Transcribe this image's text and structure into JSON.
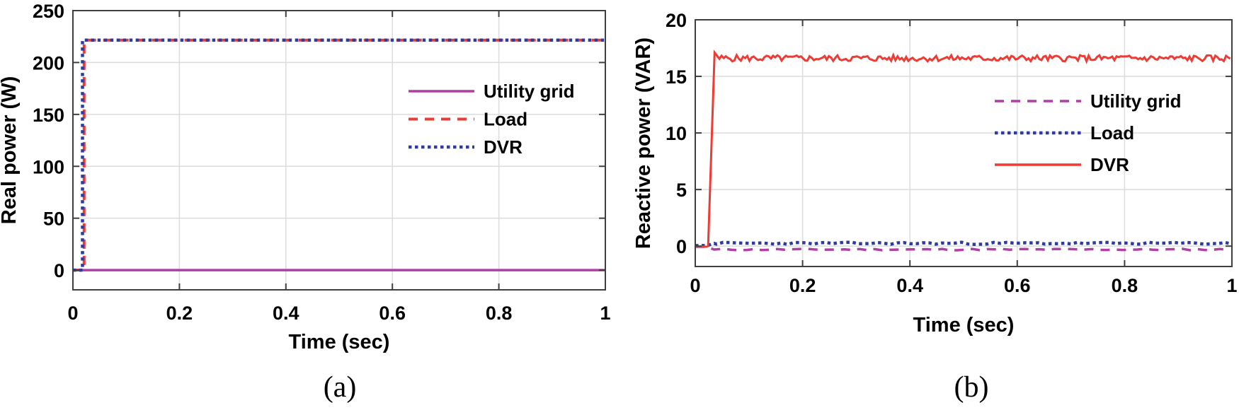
{
  "page": {
    "background_color": "#ffffff"
  },
  "chart_data": [
    {
      "type": "line",
      "caption": "(a)",
      "title": "",
      "xlabel": "Time (sec)",
      "ylabel": "Real power (W)",
      "xlim": [
        0,
        1
      ],
      "ylim": [
        -19,
        250
      ],
      "xticks": [
        0,
        0.2,
        0.4,
        0.6,
        0.8,
        1
      ],
      "xtick_labels": [
        "0",
        "0.2",
        "0.4",
        "0.6",
        "0.8",
        "1"
      ],
      "yticks": [
        0,
        50,
        100,
        150,
        200,
        250
      ],
      "ytick_labels": [
        "0",
        "50",
        "100",
        "150",
        "200",
        "250"
      ],
      "grid": true,
      "legend_position": "inside-center-right",
      "axis_color": "#3f3f3f",
      "grid_color": "#dcdcdc",
      "text_color": "#000000",
      "series": [
        {
          "name": "Utility grid",
          "color": "#b03ea6",
          "style": "solid",
          "width": 3.5,
          "points": [
            [
              0,
              0
            ],
            [
              1,
              0
            ]
          ]
        },
        {
          "name": "Load",
          "color": "#ee3b34",
          "style": "dashed",
          "width": 4,
          "points": [
            [
              0,
              0
            ],
            [
              0.021,
              0
            ],
            [
              0.021,
              221.5
            ],
            [
              1,
              221.5
            ]
          ]
        },
        {
          "name": "DVR",
          "color": "#2d3c9e",
          "style": "dotted",
          "width": 4.5,
          "points": [
            [
              0,
              0
            ],
            [
              0.018,
              0
            ],
            [
              0.018,
              221.5
            ],
            [
              1,
              221.5
            ]
          ]
        }
      ]
    },
    {
      "type": "line",
      "caption": "(b)",
      "title": "",
      "xlabel": "Time (sec)",
      "ylabel": "Reactive power (VAR)",
      "xlim": [
        0,
        1
      ],
      "ylim": [
        -1.8,
        20
      ],
      "xticks": [
        0,
        0.2,
        0.4,
        0.6,
        0.8,
        1
      ],
      "xtick_labels": [
        "0",
        "0.2",
        "0.4",
        "0.6",
        "0.8",
        "1"
      ],
      "yticks": [
        0,
        5,
        10,
        15,
        20
      ],
      "ytick_labels": [
        "0",
        "5",
        "10",
        "15",
        "20"
      ],
      "grid": true,
      "legend_position": "inside-center-right",
      "axis_color": "#3f3f3f",
      "grid_color": "#dcdcdc",
      "text_color": "#000000",
      "series": [
        {
          "name": "Utility grid",
          "color": "#b03ea6",
          "style": "dashed",
          "width": 3.5,
          "points": [
            [
              0,
              -0.05
            ],
            [
              0.022,
              -0.05
            ],
            [
              0.035,
              -0.3
            ],
            [
              1,
              -0.3
            ]
          ],
          "noise": {
            "amp": 0.07,
            "from": 0.04,
            "step": 0.014,
            "seed": 11
          }
        },
        {
          "name": "Load",
          "color": "#2d3c9e",
          "style": "dotted",
          "width": 4.5,
          "points": [
            [
              0,
              0.05
            ],
            [
              0.022,
              0.05
            ],
            [
              0.035,
              0.25
            ],
            [
              1,
              0.25
            ]
          ],
          "noise": {
            "amp": 0.1,
            "from": 0.04,
            "step": 0.012,
            "seed": 23
          }
        },
        {
          "name": "DVR",
          "color": "#ee3b34",
          "style": "solid",
          "width": 3,
          "points": [
            [
              0,
              -0.05
            ],
            [
              0.021,
              -0.05
            ],
            [
              0.024,
              0
            ],
            [
              0.036,
              17.1
            ],
            [
              1,
              16.6
            ]
          ],
          "noise": {
            "amp": 0.28,
            "from": 0.045,
            "step": 0.004,
            "seed": 5
          }
        }
      ]
    }
  ]
}
